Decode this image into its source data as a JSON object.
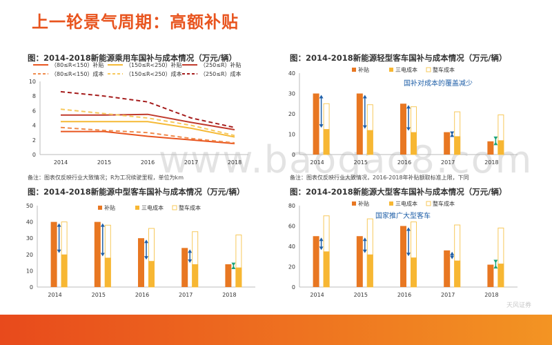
{
  "page": {
    "title": "上一轮景气周期：高额补贴",
    "watermark": "www.baogao8.com",
    "note1": "备注：图表仅反映行业大致情况；R为工况续驶里程，单位为km",
    "note2": "备注：图表仅反映行业大致情况，2016-2018年补贴额取标准上限，下同",
    "logo": "天风证券"
  },
  "colors": {
    "subsidy": "#e87722",
    "battery": "#f7b733",
    "vehicle_border": "#f7c85a",
    "arrow_blue": "#1f5fa8",
    "arrow_green": "#1aa37a",
    "accent": "#e8541e",
    "legend_dark": "#c0392b"
  },
  "chart_data": [
    {
      "type": "line",
      "title": "图：2014-2018新能源乘用车国补与成本情况（万元/辆）",
      "categories": [
        "2014",
        "2015",
        "2016",
        "2017",
        "2018"
      ],
      "ylim": [
        0,
        10
      ],
      "yticks": [
        "0",
        "2",
        "4",
        "6",
        "8",
        "10"
      ],
      "series": [
        {
          "name": "（80≤R<150）补贴",
          "values": [
            3.15,
            3.15,
            2.5,
            2.0,
            1.5
          ],
          "color": "#e8541e",
          "dash": false
        },
        {
          "name": "（150≤R<250）补贴",
          "values": [
            4.5,
            4.5,
            4.5,
            3.6,
            2.4
          ],
          "color": "#f5b935",
          "dash": false
        },
        {
          "name": "（250≤R）补贴",
          "values": [
            5.4,
            5.4,
            5.5,
            4.4,
            3.4
          ],
          "color": "#c0392b",
          "dash": false
        },
        {
          "name": "（80≤R<150）成本",
          "values": [
            3.7,
            3.3,
            3.0,
            2.2,
            1.6
          ],
          "color": "#f08a4b",
          "dash": true
        },
        {
          "name": "（150≤R<250）成本",
          "values": [
            6.2,
            5.6,
            5.0,
            4.0,
            2.6
          ],
          "color": "#f7c85a",
          "dash": true
        },
        {
          "name": "（250≤R）成本",
          "values": [
            8.6,
            8.0,
            7.2,
            5.0,
            3.7
          ],
          "color": "#a51c1c",
          "dash": true
        }
      ]
    },
    {
      "type": "bar",
      "title": "图：2014-2018新能源轻型客车国补与成本情况（万元/辆）",
      "categories": [
        "2014",
        "2015",
        "2016",
        "2017",
        "2018"
      ],
      "ylim": [
        0,
        40
      ],
      "yticks": [
        "0",
        "10",
        "20",
        "30",
        "40"
      ],
      "legend": [
        "补贴",
        "三电成本",
        "整车成本"
      ],
      "annotation": "国补对成本的覆盖减少",
      "subsidy": [
        30,
        30,
        25,
        11,
        6.5
      ],
      "battery": [
        12.5,
        12,
        11,
        9,
        7
      ],
      "vehicle": [
        25,
        24.5,
        23.5,
        21,
        19.5
      ]
    },
    {
      "type": "bar",
      "title": "图：2014-2018新能源中型客车国补与成本情况（万元/辆）",
      "categories": [
        "2014",
        "2015",
        "2016",
        "2017",
        "2018"
      ],
      "ylim": [
        0,
        50
      ],
      "yticks": [
        "0",
        "10",
        "20",
        "30",
        "40",
        "50"
      ],
      "legend": [
        "补贴",
        "三电成本",
        "整车成本"
      ],
      "annotation": "",
      "subsidy": [
        40,
        40,
        30,
        24,
        14
      ],
      "battery": [
        20,
        18,
        16,
        14,
        12
      ],
      "vehicle": [
        40,
        38,
        36,
        34,
        32
      ]
    },
    {
      "type": "bar",
      "title": "图：2014-2018新能源大型客车国补与成本情况（万元/辆）",
      "categories": [
        "2014",
        "2015",
        "2016",
        "2017",
        "2018"
      ],
      "ylim": [
        0,
        80
      ],
      "yticks": [
        "0",
        "20",
        "40",
        "60",
        "80"
      ],
      "legend": [
        "补贴",
        "三电成本",
        "整车成本"
      ],
      "annotation": "国家推广大型客车",
      "subsidy": [
        50,
        50,
        60,
        36,
        22
      ],
      "battery": [
        35,
        32,
        29,
        26,
        23
      ],
      "vehicle": [
        70,
        67,
        64,
        61,
        58
      ]
    }
  ]
}
